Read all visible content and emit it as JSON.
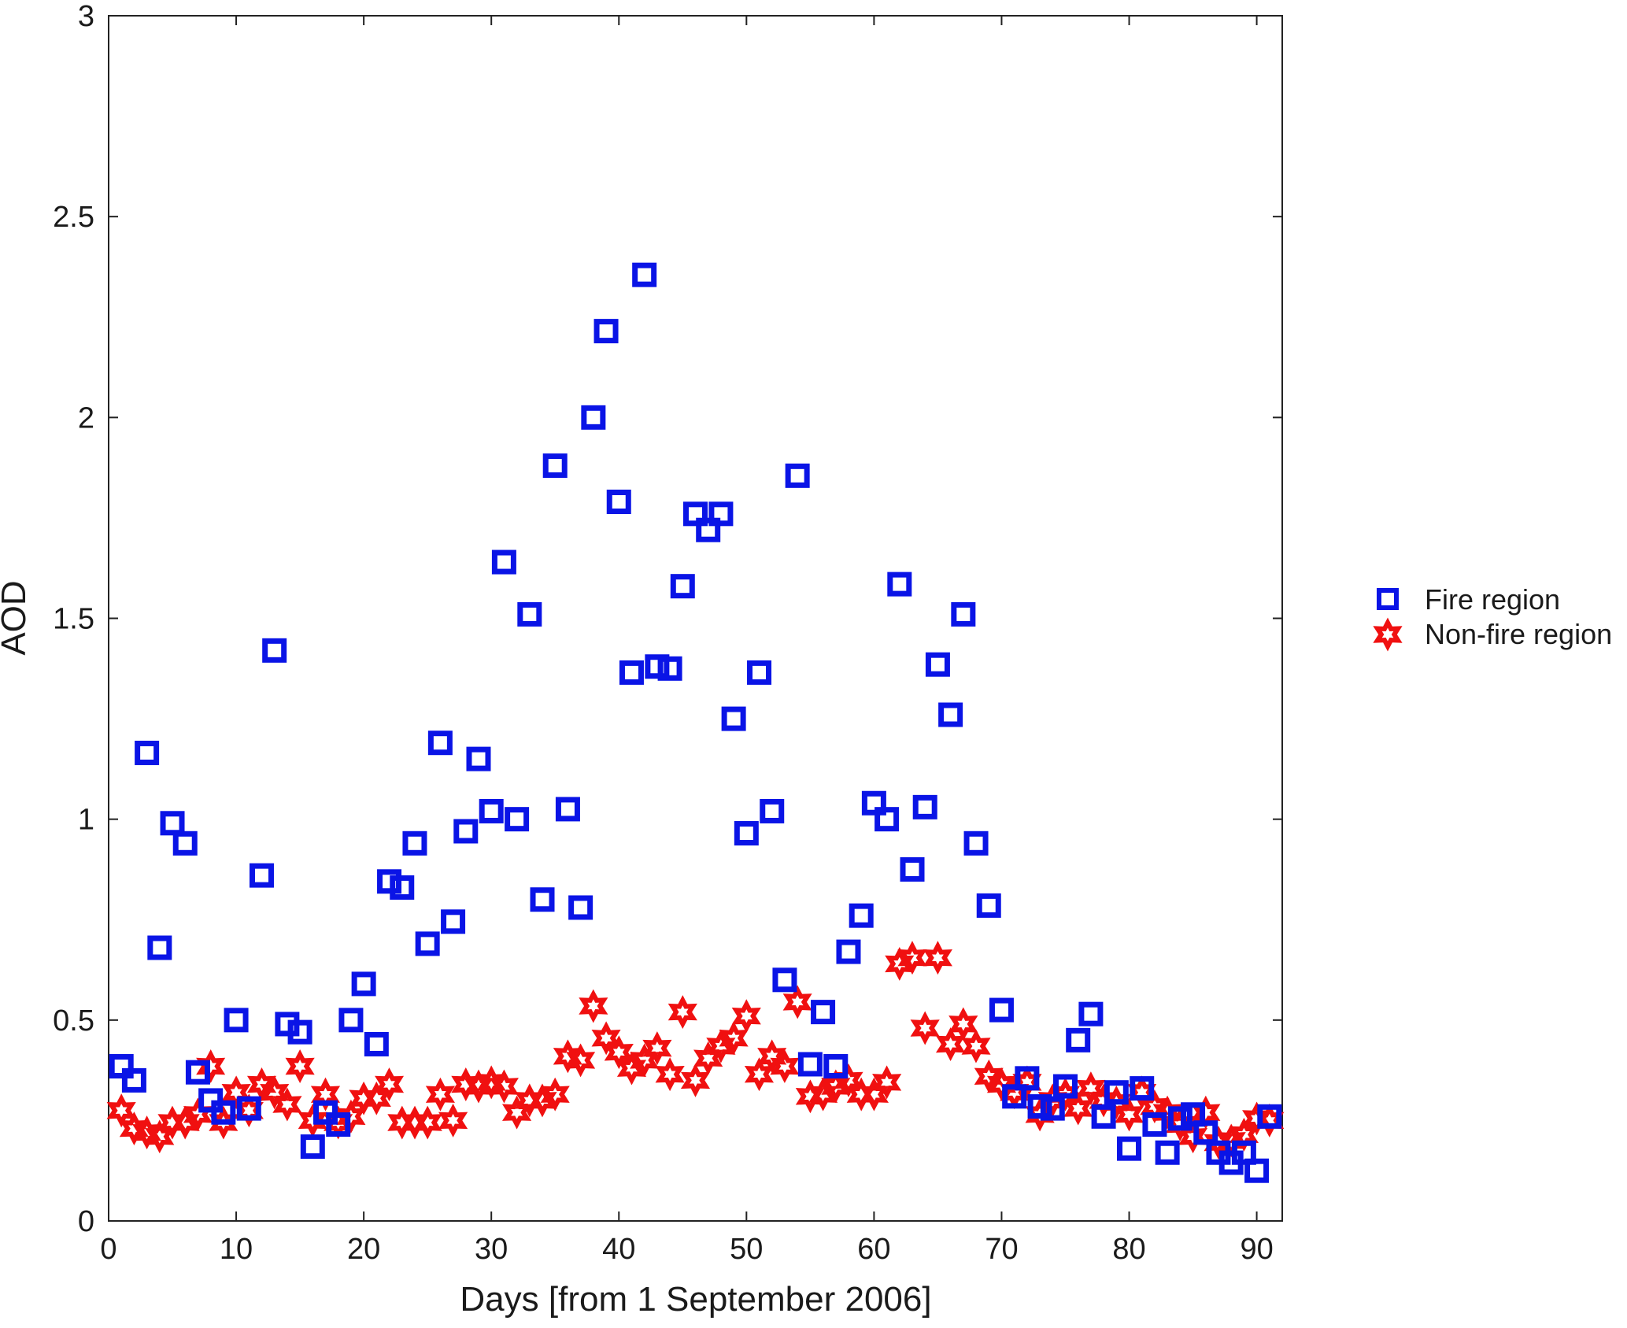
{
  "chart_data": {
    "type": "scatter",
    "title": "",
    "xlabel": "Days [from 1 September 2006]",
    "ylabel": "AOD",
    "xlim": [
      0,
      92
    ],
    "ylim": [
      0,
      3
    ],
    "xticks": [
      0,
      10,
      20,
      30,
      40,
      50,
      60,
      70,
      80,
      90
    ],
    "xtick_labels": [
      "0",
      "10",
      "20",
      "30",
      "40",
      "50",
      "60",
      "70",
      "80",
      "90"
    ],
    "yticks": [
      0,
      0.5,
      1,
      1.5,
      2,
      2.5,
      3
    ],
    "ytick_labels": [
      "0",
      "0.5",
      "1",
      "1.5",
      "2",
      "2.5",
      "3"
    ],
    "grid": false,
    "legend_position": "right-outside",
    "series": [
      {
        "name": "Fire region",
        "marker": "square",
        "color": "#0a14e6",
        "x": [
          1,
          2,
          3,
          4,
          5,
          6,
          7,
          8,
          9,
          10,
          11,
          12,
          13,
          14,
          15,
          16,
          17,
          18,
          19,
          20,
          21,
          22,
          23,
          24,
          25,
          26,
          27,
          28,
          29,
          30,
          31,
          32,
          33,
          34,
          35,
          36,
          37,
          38,
          39,
          40,
          41,
          42,
          43,
          44,
          45,
          46,
          47,
          48,
          49,
          50,
          51,
          52,
          53,
          54,
          55,
          56,
          57,
          58,
          59,
          60,
          61,
          62,
          63,
          64,
          65,
          66,
          67,
          68,
          69,
          70,
          71,
          72,
          73,
          74,
          75,
          76,
          77,
          78,
          79,
          80,
          81,
          82,
          83,
          84,
          85,
          86,
          87,
          88,
          89,
          90,
          91
        ],
        "values": [
          0.385,
          0.35,
          1.165,
          0.68,
          0.99,
          0.94,
          0.37,
          0.3,
          0.27,
          0.5,
          0.28,
          0.86,
          1.42,
          0.49,
          0.47,
          0.185,
          0.27,
          0.24,
          0.5,
          0.59,
          0.44,
          0.845,
          0.83,
          0.94,
          0.69,
          1.19,
          0.745,
          0.97,
          1.15,
          1.02,
          1.64,
          1.0,
          1.51,
          0.8,
          1.88,
          1.025,
          0.78,
          2.0,
          2.215,
          1.79,
          1.365,
          2.355,
          1.38,
          1.375,
          1.58,
          1.76,
          1.72,
          1.76,
          1.25,
          0.965,
          1.365,
          1.02,
          0.6,
          1.855,
          0.39,
          0.52,
          0.385,
          0.67,
          0.76,
          1.04,
          1.0,
          1.585,
          0.875,
          1.03,
          1.385,
          1.26,
          1.51,
          0.94,
          0.785,
          0.525,
          0.31,
          0.355,
          0.285,
          0.28,
          0.335,
          0.45,
          0.515,
          0.26,
          0.32,
          0.18,
          0.33,
          0.24,
          0.17,
          0.255,
          0.265,
          0.22,
          0.17,
          0.145,
          0.17,
          0.125,
          0.26
        ]
      },
      {
        "name": "Non-fire region",
        "marker": "star",
        "color": "#f01010",
        "x": [
          1,
          2,
          3,
          4,
          5,
          6,
          7,
          8,
          9,
          10,
          11,
          12,
          13,
          14,
          15,
          16,
          17,
          18,
          19,
          20,
          21,
          22,
          23,
          24,
          25,
          26,
          27,
          28,
          29,
          30,
          31,
          32,
          33,
          34,
          35,
          36,
          37,
          38,
          39,
          40,
          41,
          42,
          43,
          44,
          45,
          46,
          47,
          48,
          49,
          50,
          51,
          52,
          53,
          54,
          55,
          56,
          57,
          58,
          59,
          60,
          61,
          62,
          63,
          64,
          65,
          66,
          67,
          68,
          69,
          70,
          71,
          72,
          73,
          74,
          75,
          76,
          77,
          78,
          79,
          80,
          81,
          82,
          83,
          84,
          85,
          86,
          87,
          88,
          89,
          90,
          91
        ],
        "values": [
          0.275,
          0.23,
          0.22,
          0.21,
          0.245,
          0.245,
          0.265,
          0.385,
          0.245,
          0.32,
          0.275,
          0.34,
          0.32,
          0.29,
          0.385,
          0.25,
          0.315,
          0.245,
          0.26,
          0.305,
          0.305,
          0.34,
          0.245,
          0.245,
          0.245,
          0.315,
          0.25,
          0.34,
          0.335,
          0.345,
          0.335,
          0.27,
          0.3,
          0.3,
          0.315,
          0.41,
          0.4,
          0.535,
          0.455,
          0.42,
          0.38,
          0.4,
          0.43,
          0.365,
          0.52,
          0.35,
          0.405,
          0.435,
          0.455,
          0.51,
          0.365,
          0.41,
          0.385,
          0.545,
          0.31,
          0.315,
          0.335,
          0.35,
          0.315,
          0.315,
          0.345,
          0.64,
          0.655,
          0.48,
          0.655,
          0.44,
          0.49,
          0.435,
          0.36,
          0.34,
          0.32,
          0.345,
          0.265,
          0.3,
          0.315,
          0.28,
          0.33,
          0.3,
          0.295,
          0.265,
          0.32,
          0.285,
          0.27,
          0.24,
          0.21,
          0.27,
          0.195,
          0.2,
          0.215,
          0.255,
          0.25
        ]
      }
    ]
  }
}
